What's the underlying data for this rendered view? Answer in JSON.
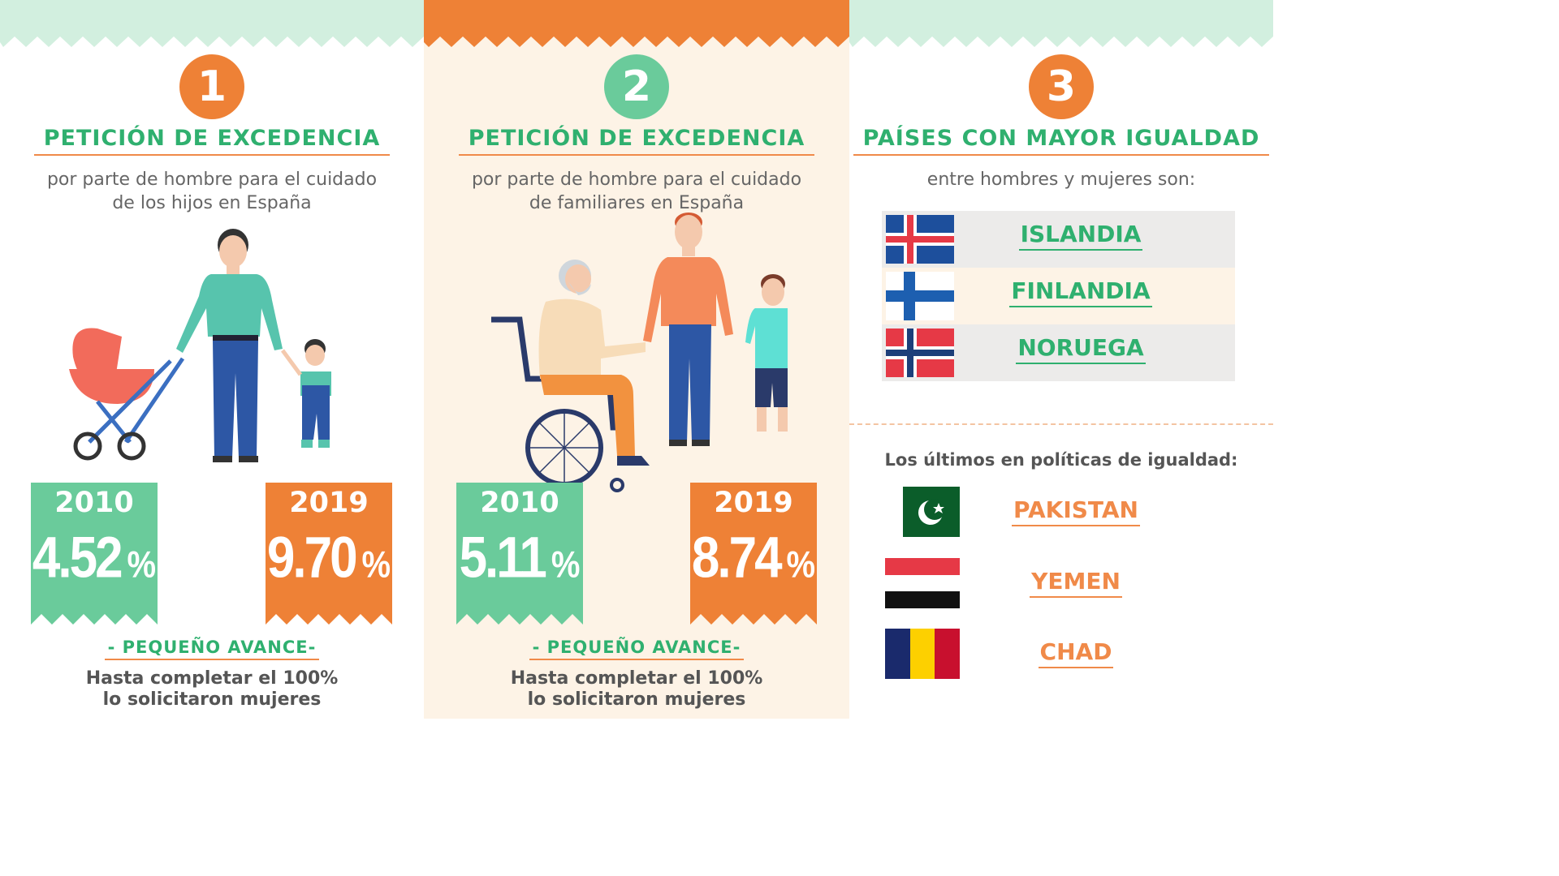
{
  "colors": {
    "green": "#6acb9b",
    "orange": "#ee8136",
    "mint_band": "#d2efdf",
    "cream": "#fdf3e6"
  },
  "sections": [
    {
      "number": "1",
      "title": "PETICIÓN DE EXCEDENCIA",
      "subtitle_line1": "por parte de hombre para el cuidado",
      "subtitle_line2": "de los hijos en España",
      "stat_a": {
        "year": "2010",
        "value": "4.52",
        "unit": "%"
      },
      "stat_b": {
        "year": "2019",
        "value": "9.70",
        "unit": "%"
      },
      "advance": "- PEQUEÑO AVANCE-",
      "note_line1": "Hasta completar el 100%",
      "note_line2": "lo solicitaron mujeres",
      "illustration": "father-stroller-child-illustration"
    },
    {
      "number": "2",
      "title": "PETICIÓN DE EXCEDENCIA",
      "subtitle_line1": "por parte de hombre para el cuidado",
      "subtitle_line2": "de familiares en España",
      "stat_a": {
        "year": "2010",
        "value": "5.11",
        "unit": "%"
      },
      "stat_b": {
        "year": "2019",
        "value": "8.74",
        "unit": "%"
      },
      "advance": "- PEQUEÑO AVANCE-",
      "note_line1": "Hasta completar el 100%",
      "note_line2": "lo solicitaron mujeres",
      "illustration": "family-wheelchair-illustration"
    },
    {
      "number": "3",
      "title": "PAÍSES CON MAYOR IGUALDAD",
      "subtitle_line1": "entre hombres y mujeres son:",
      "top_countries": [
        {
          "name": "ISLANDIA",
          "flag": "iceland-flag-icon"
        },
        {
          "name": "FINLANDIA",
          "flag": "finland-flag-icon"
        },
        {
          "name": "NORUEGA",
          "flag": "norway-flag-icon"
        }
      ],
      "last_title": "Los últimos en políticas de igualdad:",
      "last_countries": [
        {
          "name": "PAKISTAN",
          "flag": "pakistan-flag-icon"
        },
        {
          "name": "YEMEN",
          "flag": "yemen-flag-icon"
        },
        {
          "name": "CHAD",
          "flag": "chad-flag-icon"
        }
      ]
    }
  ]
}
